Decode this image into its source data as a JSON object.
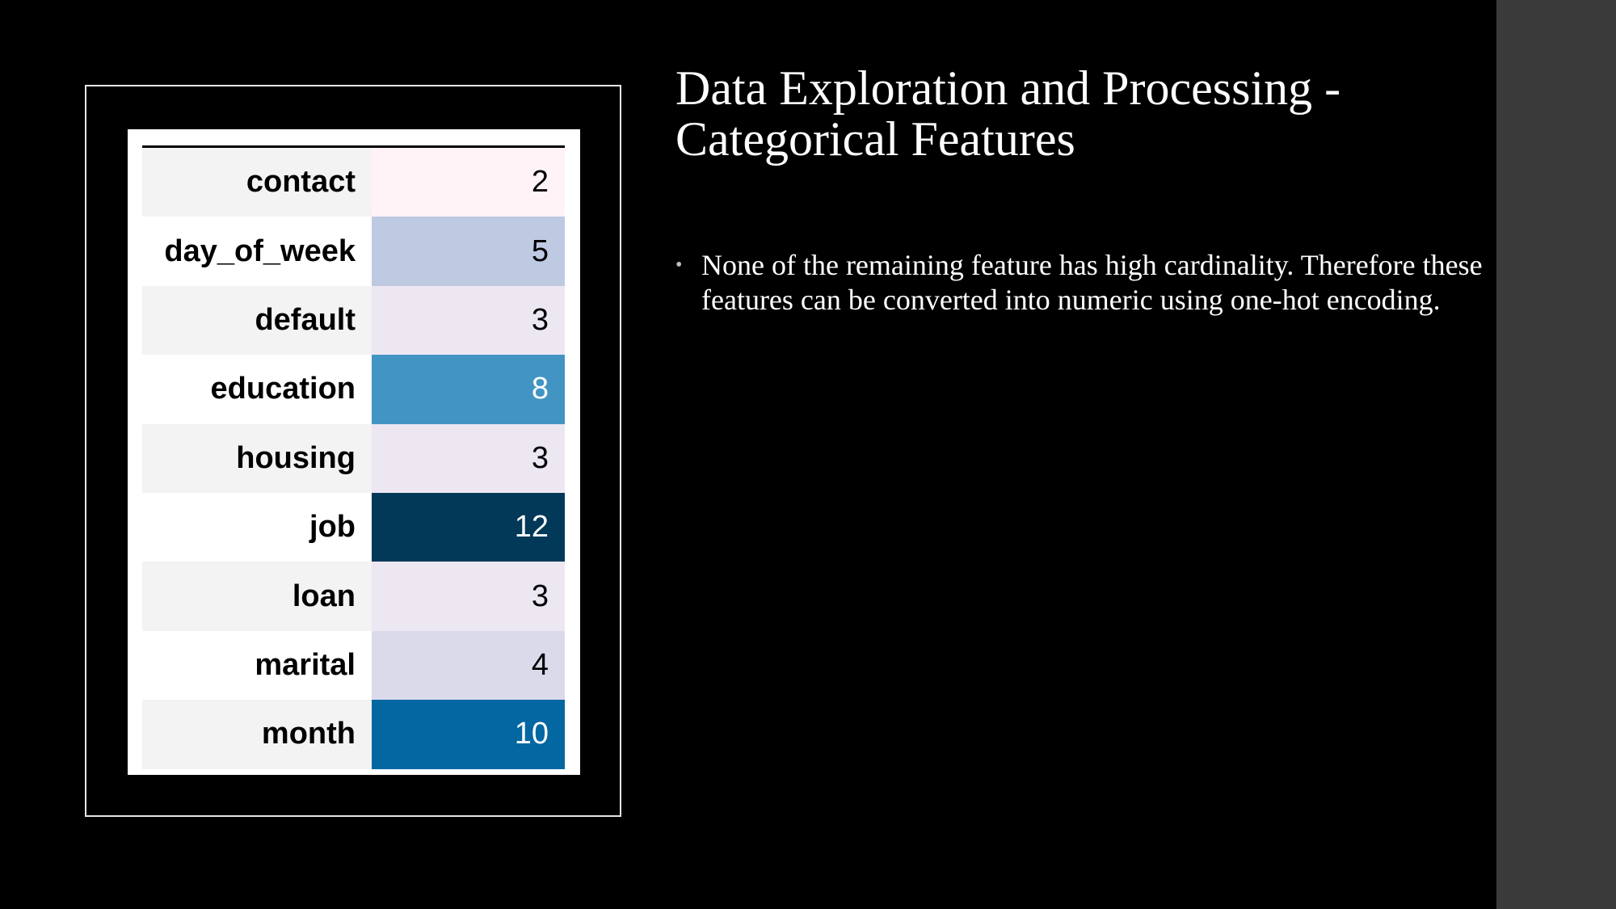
{
  "slide": {
    "title": "Data Exploration and Processing - Categorical Features",
    "bullets": [
      "None of the remaining feature has high cardinality. Therefore these features can be converted into numeric using one-hot encoding."
    ],
    "bullet_marker": "•"
  },
  "colors": {
    "background": "#000000",
    "side_band": "#3a3a3a",
    "frame_border": "#e6e6e6",
    "text": "#ffffff",
    "row_label_stripe": "#f3f3f3",
    "heatmap_low": "#fff7fb",
    "heatmap_high": "#023858"
  },
  "chart_data": {
    "type": "table",
    "rows": [
      {
        "label": "contact",
        "value": 2,
        "color": "#fff3f8"
      },
      {
        "label": "day_of_week",
        "value": 5,
        "color": "#bec9e2"
      },
      {
        "label": "default",
        "value": 3,
        "color": "#ede7f2"
      },
      {
        "label": "education",
        "value": 8,
        "color": "#4295c3"
      },
      {
        "label": "housing",
        "value": 3,
        "color": "#ede7f2"
      },
      {
        "label": "job",
        "value": 12,
        "color": "#023858"
      },
      {
        "label": "loan",
        "value": 3,
        "color": "#ede7f2"
      },
      {
        "label": "marital",
        "value": 4,
        "color": "#dbdaeb"
      },
      {
        "label": "month",
        "value": 10,
        "color": "#0567a2"
      }
    ],
    "color_scale": "PuBu"
  }
}
